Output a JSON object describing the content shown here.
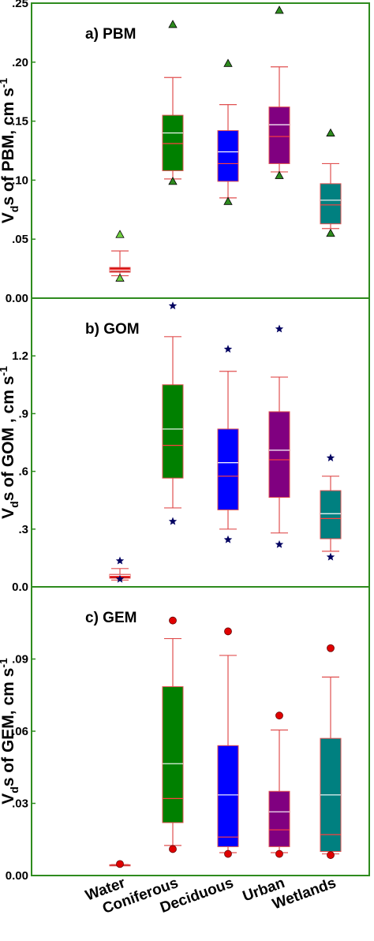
{
  "chart_data": {
    "type": "box",
    "categories": [
      "Water",
      "Coniferous",
      "Deciduous",
      "Urban",
      "Wetlands"
    ],
    "colors": {
      "Water": "#c00000",
      "Coniferous": "#008000",
      "Deciduous": "#0000ff",
      "Urban": "#800080",
      "Wetlands": "#008080",
      "frame": "#2e8b1e",
      "whisker": "#e05050",
      "star": "#000060",
      "circle": "#e00000"
    },
    "panels": [
      {
        "title": "a) PBM",
        "ylabel": {
          "main": "V",
          "sub": "d",
          "rest": "s of PBM, cm s",
          "sup": "-1"
        },
        "ylim": [
          0,
          0.25
        ],
        "ticks": [
          {
            "v": 0.0,
            "label": "0.00"
          },
          {
            "v": 0.05,
            "label": ".05"
          },
          {
            "v": 0.1,
            "label": ".10"
          },
          {
            "v": 0.15,
            "label": ".15"
          },
          {
            "v": 0.2,
            "label": ".20"
          },
          {
            "v": 0.25,
            "label": ".25"
          }
        ],
        "outlier_marker": "triangle",
        "boxes": [
          {
            "category": "Water",
            "whisker_low": 0.019,
            "q1": 0.022,
            "median": 0.0245,
            "mean": 0.0235,
            "q3": 0.026,
            "whisker_high": 0.04,
            "outliers": [
              0.054,
              0.017
            ],
            "outlier_color": "#70d040"
          },
          {
            "category": "Coniferous",
            "whisker_low": 0.101,
            "q1": 0.108,
            "median": 0.131,
            "mean": 0.14,
            "q3": 0.155,
            "whisker_high": 0.187,
            "outliers": [
              0.232,
              0.099
            ],
            "outlier_color": "#2e8b1e"
          },
          {
            "category": "Deciduous",
            "whisker_low": 0.085,
            "q1": 0.099,
            "median": 0.114,
            "mean": 0.124,
            "q3": 0.142,
            "whisker_high": 0.164,
            "outliers": [
              0.199,
              0.082
            ],
            "outlier_color": "#2e8b1e"
          },
          {
            "category": "Urban",
            "whisker_low": 0.107,
            "q1": 0.114,
            "median": 0.137,
            "mean": 0.147,
            "q3": 0.162,
            "whisker_high": 0.196,
            "outliers": [
              0.244,
              0.104
            ],
            "outlier_color": "#2e8b1e"
          },
          {
            "category": "Wetlands",
            "whisker_low": 0.059,
            "q1": 0.063,
            "median": 0.079,
            "mean": 0.083,
            "q3": 0.097,
            "whisker_high": 0.114,
            "outliers": [
              0.14,
              0.055
            ],
            "outlier_color": "#2e8b1e"
          }
        ]
      },
      {
        "title": "b) GOM",
        "ylabel": {
          "main": "V",
          "sub": "d",
          "rest": "s of GOM , cm s",
          "sup": "-1"
        },
        "ylim": [
          0,
          1.5
        ],
        "ticks": [
          {
            "v": 0.0,
            "label": "0.0"
          },
          {
            "v": 0.3,
            "label": ".3"
          },
          {
            "v": 0.6,
            "label": ".6"
          },
          {
            "v": 0.9,
            "label": ".9"
          },
          {
            "v": 1.2,
            "label": "1.2"
          }
        ],
        "outlier_marker": "star",
        "boxes": [
          {
            "category": "Water",
            "whisker_low": 0.035,
            "q1": 0.045,
            "median": 0.055,
            "mean": 0.06,
            "q3": 0.065,
            "whisker_high": 0.095,
            "outliers": [
              0.135,
              0.04
            ],
            "outlier_color": "#000060"
          },
          {
            "category": "Coniferous",
            "whisker_low": 0.41,
            "q1": 0.565,
            "median": 0.735,
            "mean": 0.82,
            "q3": 1.05,
            "whisker_high": 1.3,
            "outliers": [
              1.46,
              0.34
            ],
            "outlier_color": "#000060"
          },
          {
            "category": "Deciduous",
            "whisker_low": 0.3,
            "q1": 0.4,
            "median": 0.575,
            "mean": 0.645,
            "q3": 0.82,
            "whisker_high": 1.12,
            "outliers": [
              1.235,
              0.245
            ],
            "outlier_color": "#000060"
          },
          {
            "category": "Urban",
            "whisker_low": 0.28,
            "q1": 0.465,
            "median": 0.66,
            "mean": 0.71,
            "q3": 0.91,
            "whisker_high": 1.09,
            "outliers": [
              1.34,
              0.22
            ],
            "outlier_color": "#000060"
          },
          {
            "category": "Wetlands",
            "whisker_low": 0.185,
            "q1": 0.25,
            "median": 0.355,
            "mean": 0.38,
            "q3": 0.5,
            "whisker_high": 0.575,
            "outliers": [
              0.67,
              0.155
            ],
            "outlier_color": "#000060"
          }
        ]
      },
      {
        "title": "c) GEM",
        "ylabel": {
          "main": "V",
          "sub": "d",
          "rest": "s of GEM, cm s",
          "sup": "-1"
        },
        "ylim": [
          0,
          0.12
        ],
        "ticks": [
          {
            "v": 0.0,
            "label": "0.00"
          },
          {
            "v": 0.03,
            "label": ".03"
          },
          {
            "v": 0.06,
            "label": ".06"
          },
          {
            "v": 0.09,
            "label": ".09"
          }
        ],
        "outlier_marker": "circle",
        "boxes": [
          {
            "category": "Water",
            "whisker_low": 0.0045,
            "q1": 0.0045,
            "median": 0.0045,
            "mean": 0.0045,
            "q3": 0.0045,
            "whisker_high": 0.0045,
            "outliers": [
              0.0048
            ],
            "outlier_color": "#e00000"
          },
          {
            "category": "Coniferous",
            "whisker_low": 0.0125,
            "q1": 0.022,
            "median": 0.032,
            "mean": 0.0465,
            "q3": 0.0785,
            "whisker_high": 0.0985,
            "outliers": [
              0.106,
              0.011
            ],
            "outlier_color": "#e00000"
          },
          {
            "category": "Deciduous",
            "whisker_low": 0.0095,
            "q1": 0.012,
            "median": 0.016,
            "mean": 0.0335,
            "q3": 0.054,
            "whisker_high": 0.0915,
            "outliers": [
              0.1015,
              0.009
            ],
            "outlier_color": "#e00000"
          },
          {
            "category": "Urban",
            "whisker_low": 0.0095,
            "q1": 0.012,
            "median": 0.019,
            "mean": 0.0265,
            "q3": 0.035,
            "whisker_high": 0.0605,
            "outliers": [
              0.0665,
              0.009
            ],
            "outlier_color": "#e00000"
          },
          {
            "category": "Wetlands",
            "whisker_low": 0.009,
            "q1": 0.01,
            "median": 0.017,
            "mean": 0.0335,
            "q3": 0.057,
            "whisker_high": 0.0825,
            "outliers": [
              0.0945,
              0.0085
            ],
            "outlier_color": "#e00000"
          }
        ]
      }
    ]
  }
}
